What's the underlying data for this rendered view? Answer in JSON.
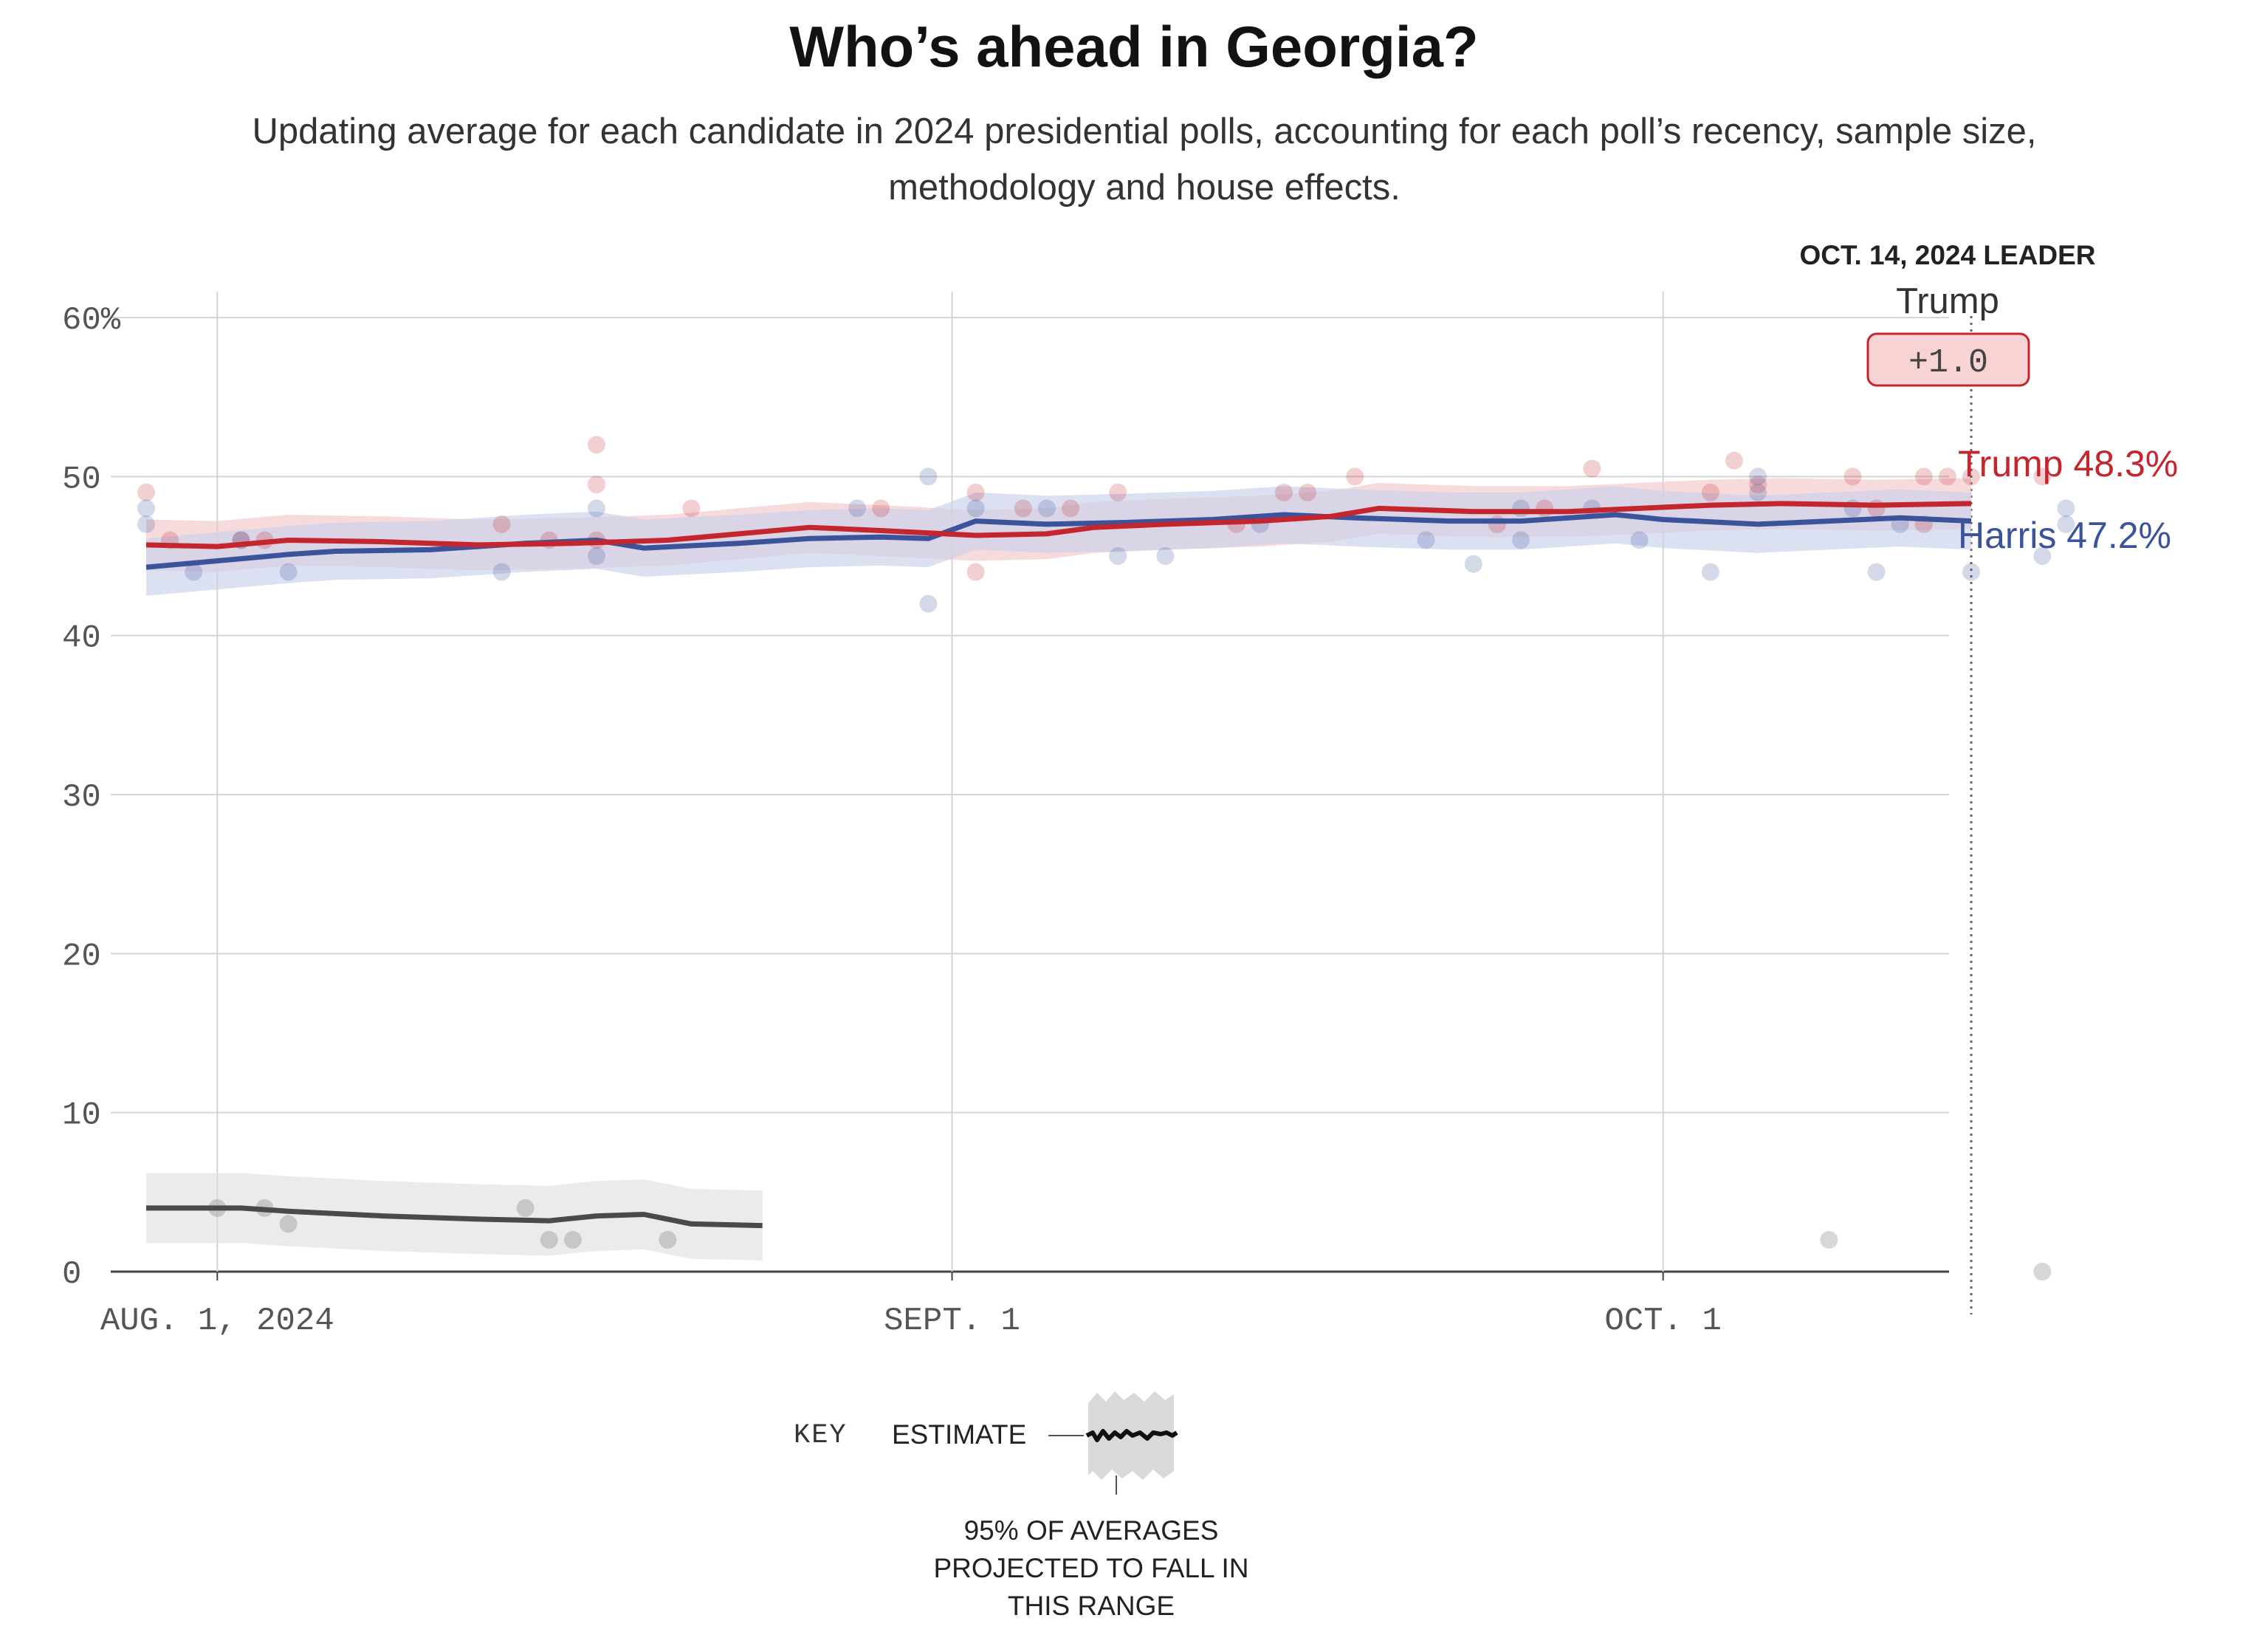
{
  "header": {
    "title": "Who’s ahead in Georgia?",
    "subtitle": "Updating average for each candidate in 2024 presidential polls, accounting for each poll’s recency, sample size, methodology and house effects."
  },
  "leader": {
    "heading": "OCT. 14, 2024 LEADER",
    "name": "Trump",
    "margin": "+1.0"
  },
  "key": {
    "label": "KEY",
    "estimate": "ESTIMATE",
    "range_lines": [
      "95% OF AVERAGES",
      "PROJECTED TO FALL IN",
      "THIS RANGE"
    ]
  },
  "colors": {
    "trump": "#c4262e",
    "harris": "#3a539b",
    "other": "#4a4a4a",
    "trump_band": "#f2c7c9",
    "harris_band": "#c9d1eb",
    "other_band": "#e1e1e1",
    "leader_box_fill": "#f7d3d4",
    "leader_box_stroke": "#c4262e"
  },
  "chart_data": {
    "type": "line",
    "x_start": "2024-07-29",
    "x_end": "2024-10-14",
    "ylim": [
      0,
      60
    ],
    "y_ticks": [
      0,
      10,
      20,
      30,
      40,
      50,
      60
    ],
    "y_tick_labels": [
      "0",
      "10",
      "20",
      "30",
      "40",
      "50",
      "60%"
    ],
    "x_ticks": [
      {
        "date": "2024-08-01",
        "label": "AUG. 1, 2024"
      },
      {
        "date": "2024-09-01",
        "label": "SEPT. 1"
      },
      {
        "date": "2024-10-01",
        "label": "OCT. 1"
      }
    ],
    "grid": true,
    "series": [
      {
        "name": "Trump",
        "key": "trump",
        "end_label": "Trump 48.3%",
        "band_width": 1.6,
        "points": [
          [
            "2024-07-29",
            45.7
          ],
          [
            "2024-08-01",
            45.6
          ],
          [
            "2024-08-04",
            46.0
          ],
          [
            "2024-08-08",
            45.9
          ],
          [
            "2024-08-12",
            45.7
          ],
          [
            "2024-08-16",
            45.8
          ],
          [
            "2024-08-20",
            46.0
          ],
          [
            "2024-08-23",
            46.4
          ],
          [
            "2024-08-26",
            46.8
          ],
          [
            "2024-08-29",
            46.6
          ],
          [
            "2024-09-02",
            46.3
          ],
          [
            "2024-09-05",
            46.4
          ],
          [
            "2024-09-07",
            46.8
          ],
          [
            "2024-09-10",
            47.0
          ],
          [
            "2024-09-14",
            47.2
          ],
          [
            "2024-09-17",
            47.5
          ],
          [
            "2024-09-19",
            48.0
          ],
          [
            "2024-09-23",
            47.8
          ],
          [
            "2024-09-27",
            47.8
          ],
          [
            "2024-09-30",
            48.0
          ],
          [
            "2024-10-03",
            48.2
          ],
          [
            "2024-10-06",
            48.3
          ],
          [
            "2024-10-10",
            48.2
          ],
          [
            "2024-10-14",
            48.3
          ]
        ]
      },
      {
        "name": "Harris",
        "key": "harris",
        "end_label": "Harris 47.2%",
        "band_width": 1.8,
        "points": [
          [
            "2024-07-29",
            44.3
          ],
          [
            "2024-08-01",
            44.7
          ],
          [
            "2024-08-04",
            45.1
          ],
          [
            "2024-08-06",
            45.3
          ],
          [
            "2024-08-10",
            45.4
          ],
          [
            "2024-08-14",
            45.8
          ],
          [
            "2024-08-17",
            46.0
          ],
          [
            "2024-08-19",
            45.5
          ],
          [
            "2024-08-23",
            45.8
          ],
          [
            "2024-08-26",
            46.1
          ],
          [
            "2024-08-29",
            46.2
          ],
          [
            "2024-08-31",
            46.1
          ],
          [
            "2024-09-02",
            47.2
          ],
          [
            "2024-09-05",
            47.0
          ],
          [
            "2024-09-08",
            47.1
          ],
          [
            "2024-09-12",
            47.3
          ],
          [
            "2024-09-15",
            47.6
          ],
          [
            "2024-09-18",
            47.4
          ],
          [
            "2024-09-22",
            47.2
          ],
          [
            "2024-09-25",
            47.2
          ],
          [
            "2024-09-29",
            47.6
          ],
          [
            "2024-10-01",
            47.3
          ],
          [
            "2024-10-05",
            47.0
          ],
          [
            "2024-10-08",
            47.2
          ],
          [
            "2024-10-11",
            47.4
          ],
          [
            "2024-10-14",
            47.2
          ]
        ]
      },
      {
        "key": "other",
        "band_width": 2.2,
        "points": [
          [
            "2024-07-29",
            4.0
          ],
          [
            "2024-08-02",
            4.0
          ],
          [
            "2024-08-04",
            3.8
          ],
          [
            "2024-08-08",
            3.5
          ],
          [
            "2024-08-12",
            3.3
          ],
          [
            "2024-08-15",
            3.2
          ],
          [
            "2024-08-17",
            3.5
          ],
          [
            "2024-08-19",
            3.6
          ],
          [
            "2024-08-21",
            3.0
          ],
          [
            "2024-08-24",
            2.9
          ]
        ]
      }
    ],
    "polls": {
      "trump": [
        [
          "2024-07-29",
          49
        ],
        [
          "2024-07-30",
          46
        ],
        [
          "2024-08-02",
          46
        ],
        [
          "2024-08-03",
          46
        ],
        [
          "2024-08-13",
          47
        ],
        [
          "2024-08-15",
          46
        ],
        [
          "2024-08-17",
          52
        ],
        [
          "2024-08-17",
          49.5
        ],
        [
          "2024-08-17",
          46
        ],
        [
          "2024-08-21",
          48
        ],
        [
          "2024-08-29",
          48
        ],
        [
          "2024-09-02",
          44
        ],
        [
          "2024-09-02",
          49
        ],
        [
          "2024-09-04",
          48
        ],
        [
          "2024-09-06",
          48
        ],
        [
          "2024-09-08",
          49
        ],
        [
          "2024-09-13",
          47
        ],
        [
          "2024-09-15",
          49
        ],
        [
          "2024-09-16",
          49
        ],
        [
          "2024-09-18",
          50
        ],
        [
          "2024-09-24",
          47
        ],
        [
          "2024-09-26",
          48
        ],
        [
          "2024-09-28",
          50.5
        ],
        [
          "2024-10-03",
          49
        ],
        [
          "2024-10-04",
          51
        ],
        [
          "2024-10-05",
          49.5
        ],
        [
          "2024-10-09",
          50
        ],
        [
          "2024-10-10",
          48
        ],
        [
          "2024-10-12",
          47
        ],
        [
          "2024-10-12",
          50
        ],
        [
          "2024-10-13",
          50
        ],
        [
          "2024-10-14",
          50
        ],
        [
          "2024-10-17",
          50
        ]
      ],
      "harris": [
        [
          "2024-07-29",
          47
        ],
        [
          "2024-07-29",
          48
        ],
        [
          "2024-07-31",
          44
        ],
        [
          "2024-08-02",
          46
        ],
        [
          "2024-08-04",
          44
        ],
        [
          "2024-08-13",
          44
        ],
        [
          "2024-08-17",
          45
        ],
        [
          "2024-08-17",
          48
        ],
        [
          "2024-08-28",
          48
        ],
        [
          "2024-08-31",
          50
        ],
        [
          "2024-08-31",
          42
        ],
        [
          "2024-09-02",
          48
        ],
        [
          "2024-09-05",
          48
        ],
        [
          "2024-09-08",
          45
        ],
        [
          "2024-09-10",
          45
        ],
        [
          "2024-09-14",
          47
        ],
        [
          "2024-09-21",
          46
        ],
        [
          "2024-09-23",
          44.5
        ],
        [
          "2024-09-25",
          46
        ],
        [
          "2024-09-25",
          48
        ],
        [
          "2024-09-28",
          48
        ],
        [
          "2024-09-30",
          46
        ],
        [
          "2024-10-03",
          44
        ],
        [
          "2024-10-05",
          50
        ],
        [
          "2024-10-05",
          49
        ],
        [
          "2024-10-09",
          48
        ],
        [
          "2024-10-10",
          44
        ],
        [
          "2024-10-14",
          44
        ],
        [
          "2024-10-11",
          47
        ],
        [
          "2024-10-17",
          45
        ],
        [
          "2024-10-18",
          47
        ],
        [
          "2024-10-18",
          48
        ]
      ],
      "other": [
        [
          "2024-08-01",
          4
        ],
        [
          "2024-08-03",
          4
        ],
        [
          "2024-08-04",
          3
        ],
        [
          "2024-08-14",
          4
        ],
        [
          "2024-08-15",
          2
        ],
        [
          "2024-08-16",
          2
        ],
        [
          "2024-08-20",
          2
        ],
        [
          "2024-10-08",
          2
        ],
        [
          "2024-10-17",
          0
        ]
      ]
    }
  }
}
